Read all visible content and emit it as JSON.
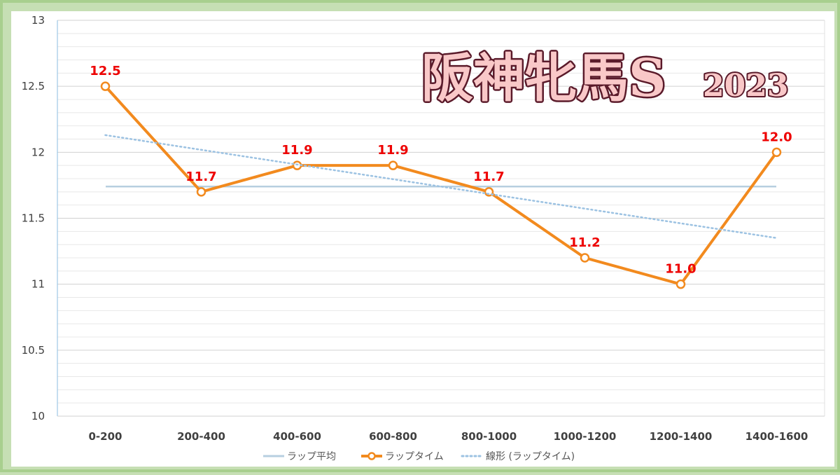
{
  "chart_data": {
    "type": "line",
    "title": "阪神牝馬S",
    "title_year": "2023",
    "categories": [
      "0-200",
      "200-400",
      "400-600",
      "600-800",
      "800-1000",
      "1000-1200",
      "1200-1400",
      "1400-1600"
    ],
    "ylim": [
      10,
      13
    ],
    "ytick_step": 0.5,
    "yticks": [
      "10",
      "10.5",
      "11",
      "11.5",
      "12",
      "12.5",
      "13"
    ],
    "minor_grid_step": 0.1,
    "grid": true,
    "legend_position": "bottom",
    "series": [
      {
        "name": "ラップ平均",
        "kind": "average",
        "values": [
          11.74,
          11.74,
          11.74,
          11.74,
          11.74,
          11.74,
          11.74,
          11.74
        ],
        "color": "#b7cfe0"
      },
      {
        "name": "ラップタイム",
        "kind": "main",
        "values": [
          12.5,
          11.7,
          11.9,
          11.9,
          11.7,
          11.2,
          11.0,
          12.0
        ],
        "labels": [
          "12.5",
          "11.7",
          "11.9",
          "11.9",
          "11.7",
          "11.2",
          "11.0",
          "12.0"
        ],
        "color": "#f28a1e",
        "label_color": "#ee0000"
      },
      {
        "name": "線形 (ラップタイム)",
        "kind": "trend",
        "values": [
          12.13,
          12.02,
          11.91,
          11.8,
          11.69,
          11.57,
          11.46,
          11.35
        ],
        "color": "#9cc2e2"
      }
    ],
    "colors": {
      "background": "#c6dfb4",
      "plot_area": "#ffffff",
      "grid": "#e0e0e0",
      "title_fill": "#f9c8c8",
      "title_stroke": "#5a1a2a"
    }
  }
}
